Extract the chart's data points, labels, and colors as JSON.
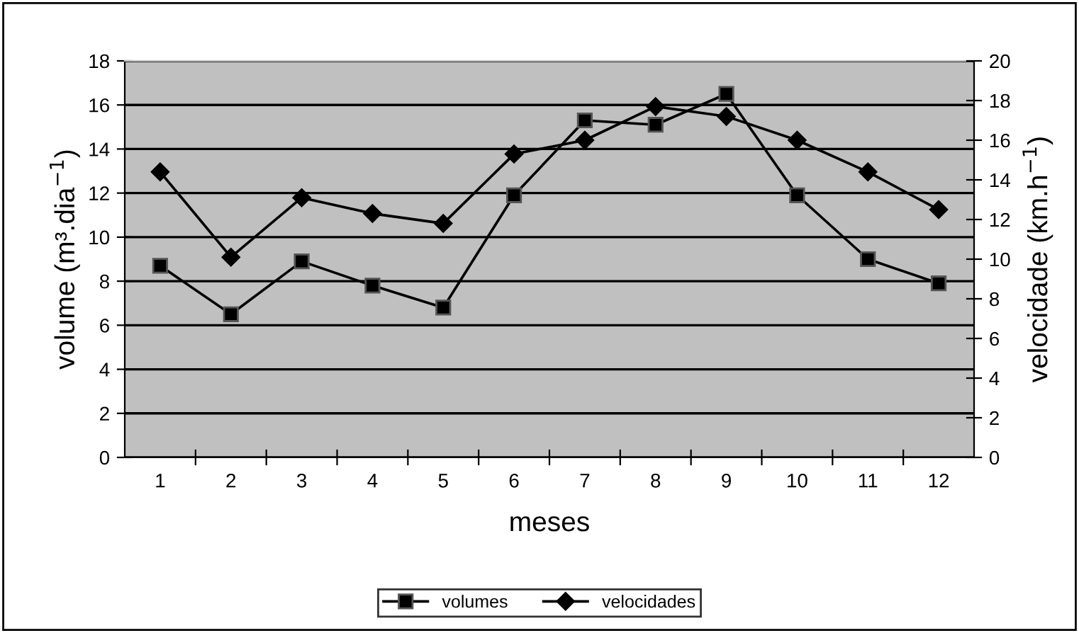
{
  "chart_data": {
    "type": "line",
    "xlabel": "meses",
    "ylabel": "volume (m³.dia$^{−1}$)",
    "y2label": "velocidade (km.h$^{−1}$)",
    "categories": [
      "1",
      "2",
      "3",
      "4",
      "5",
      "6",
      "7",
      "8",
      "9",
      "10",
      "11",
      "12"
    ],
    "series": [
      {
        "name": "volumes",
        "color": "#000000",
        "marker": "square",
        "values": [
          8.7,
          6.5,
          8.9,
          7.8,
          6.8,
          11.9,
          15.3,
          15.1,
          16.5,
          11.9,
          9.0,
          7.9
        ]
      },
      {
        "name": "velocidades",
        "color": "#000000",
        "marker": "diamond",
        "axis": "y2",
        "values": [
          14.4,
          10.1,
          13.1,
          12.3,
          11.8,
          15.3,
          16.0,
          17.7,
          17.2,
          16.0,
          14.4,
          12.5
        ]
      }
    ],
    "ylim": [
      0,
      18
    ],
    "yticks": [
      0,
      2,
      4,
      6,
      8,
      10,
      12,
      14,
      16,
      18
    ],
    "y2lim": [
      0,
      20
    ],
    "y2ticks": [
      0,
      2,
      4,
      6,
      8,
      10,
      12,
      14,
      16,
      18,
      20
    ],
    "grid": "y",
    "legend": "bottom",
    "line_style": "solid"
  }
}
